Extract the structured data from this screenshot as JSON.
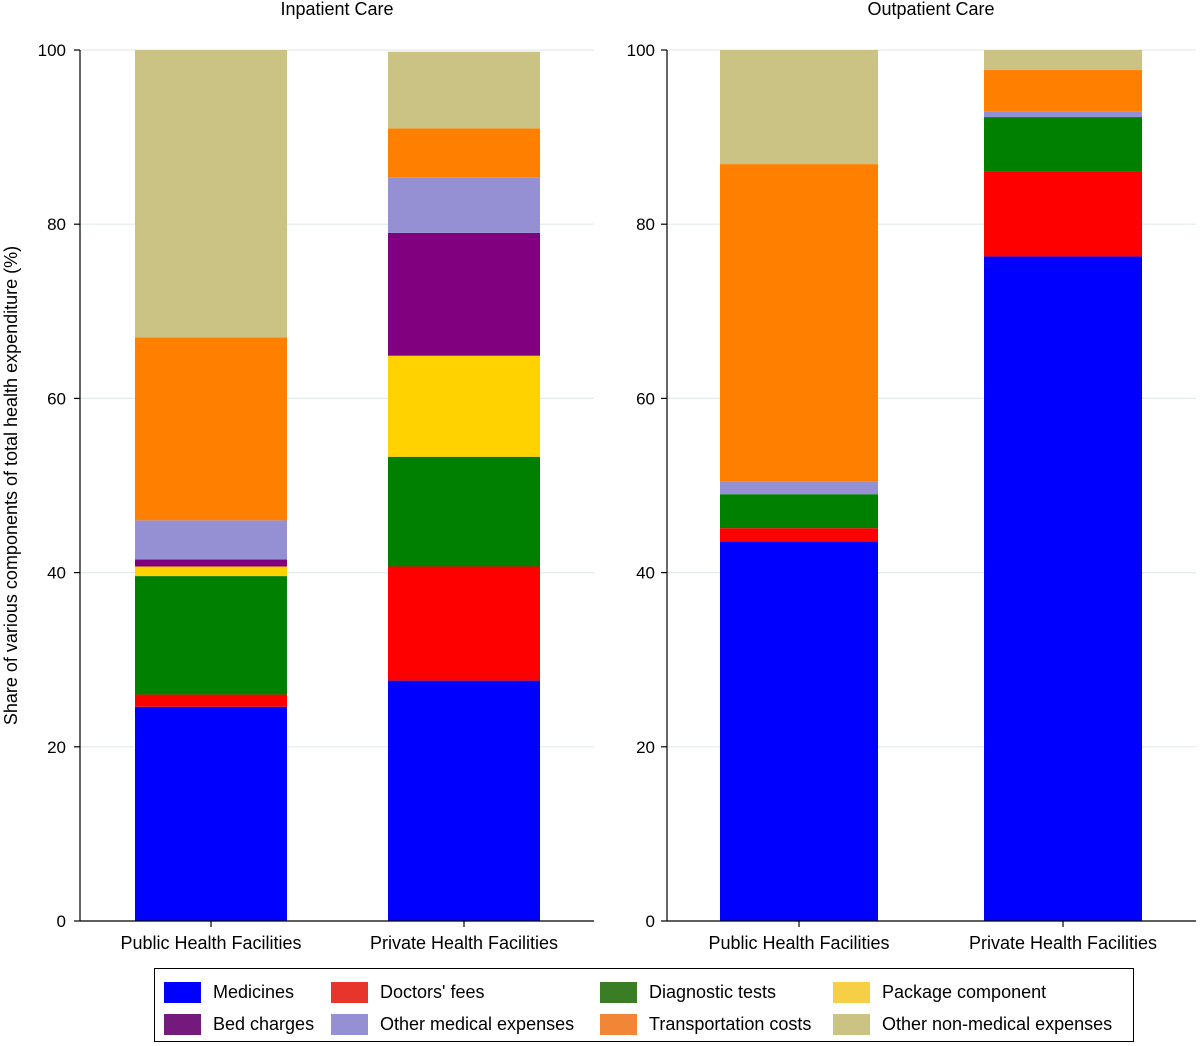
{
  "chart_data": {
    "type": "bar",
    "stacked": true,
    "ylabel": "Share of various components of total health expenditure (%)",
    "ylim": [
      0,
      100
    ],
    "yticks": [
      0,
      20,
      40,
      60,
      80,
      100
    ],
    "grid": true,
    "legend_position": "bottom",
    "components": [
      {
        "name": "Medicines",
        "color": "#0000ff"
      },
      {
        "name": "Doctors' fees",
        "color": "#ff0000"
      },
      {
        "name": "Diagnostic tests",
        "color": "#008000"
      },
      {
        "name": "Package component",
        "color": "#ffd200"
      },
      {
        "name": "Bed charges",
        "color": "#800080"
      },
      {
        "name": "Other medical expenses",
        "color": "#9490d3"
      },
      {
        "name": "Transportation costs",
        "color": "#ff8000"
      },
      {
        "name": "Other non-medical expenses",
        "color": "#cbc384"
      }
    ],
    "legend_colors": [
      "#0000ff",
      "#e8352b",
      "#3a7d25",
      "#f7cf47",
      "#741a7c",
      "#9490d3",
      "#f08636",
      "#cbc384"
    ],
    "panels": [
      {
        "title": "Inpatient Care",
        "categories": [
          "Public Health Facilities",
          "Private Health Facilities"
        ],
        "series": [
          {
            "name": "Medicines",
            "values": [
              24.6,
              27.6
            ]
          },
          {
            "name": "Doctors' fees",
            "values": [
              1.4,
              13.1
            ]
          },
          {
            "name": "Diagnostic tests",
            "values": [
              13.6,
              12.6
            ]
          },
          {
            "name": "Package component",
            "values": [
              1.1,
              11.6
            ]
          },
          {
            "name": "Bed charges",
            "values": [
              0.8,
              14.1
            ]
          },
          {
            "name": "Other medical expenses",
            "values": [
              4.5,
              6.4
            ]
          },
          {
            "name": "Transportation costs",
            "values": [
              21.0,
              5.6
            ]
          },
          {
            "name": "Other non-medical expenses",
            "values": [
              33.0,
              8.8
            ]
          }
        ]
      },
      {
        "title": "Outpatient Care",
        "categories": [
          "Public Health Facilities",
          "Private Health Facilities"
        ],
        "series": [
          {
            "name": "Medicines",
            "values": [
              43.6,
              76.3
            ]
          },
          {
            "name": "Doctors' fees",
            "values": [
              1.5,
              9.8
            ]
          },
          {
            "name": "Diagnostic tests",
            "values": [
              3.9,
              6.2
            ]
          },
          {
            "name": "Package component",
            "values": [
              0.0,
              0.0
            ]
          },
          {
            "name": "Bed charges",
            "values": [
              0.0,
              0.0
            ]
          },
          {
            "name": "Other medical expenses",
            "values": [
              1.5,
              0.6
            ]
          },
          {
            "name": "Transportation costs",
            "values": [
              36.4,
              4.8
            ]
          },
          {
            "name": "Other non-medical expenses",
            "values": [
              13.1,
              2.3
            ]
          }
        ]
      }
    ]
  }
}
